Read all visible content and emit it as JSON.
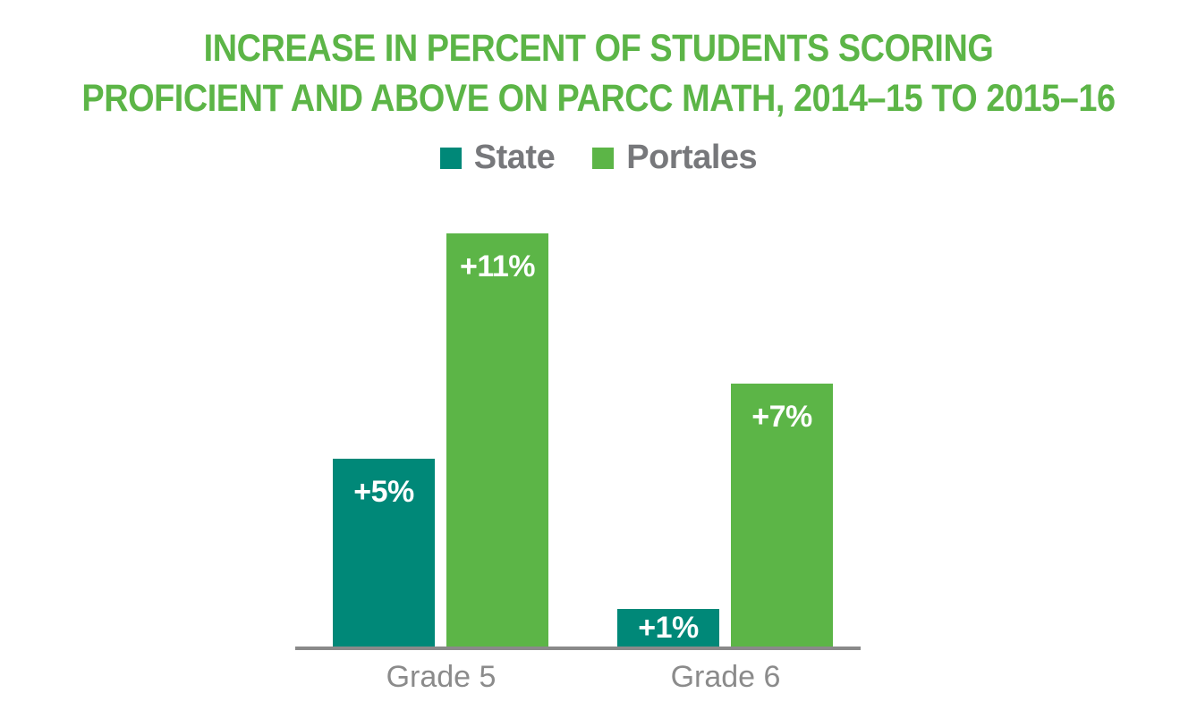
{
  "title": {
    "line1": "INCREASE IN PERCENT OF STUDENTS SCORING",
    "line2": "PROFICIENT AND ABOVE ON PARCC MATH, 2014–15 TO 2015–16"
  },
  "legend": {
    "position": "top-center",
    "items": [
      {
        "label": "State",
        "color": "#008878"
      },
      {
        "label": "Portales",
        "color": "#5CB547"
      }
    ]
  },
  "chart_data": {
    "type": "bar",
    "title": "INCREASE IN PERCENT OF STUDENTS SCORING PROFICIENT AND ABOVE ON PARCC MATH, 2014–15 TO 2015–16",
    "categories": [
      "Grade 5",
      "Grade 6"
    ],
    "series": [
      {
        "name": "State",
        "color": "#008878",
        "values": [
          5,
          1
        ],
        "data_labels": [
          "+5%",
          "+1%"
        ]
      },
      {
        "name": "Portales",
        "color": "#5CB547",
        "values": [
          11,
          7
        ],
        "data_labels": [
          "+11%",
          "+7%"
        ]
      }
    ],
    "xlabel": "",
    "ylabel": "",
    "ylim": [
      0,
      11
    ],
    "grid": false,
    "y_axis_ticks_visible": false,
    "data_label_color": "#FFFFFF"
  },
  "colors": {
    "title_green": "#5CB547",
    "bar_teal": "#008878",
    "bar_green": "#5CB547",
    "legend_text_gray": "#77787B",
    "axis_gray": "#8A8A8A",
    "category_label_gray": "#8B8B8B",
    "background": "#FFFFFF"
  }
}
